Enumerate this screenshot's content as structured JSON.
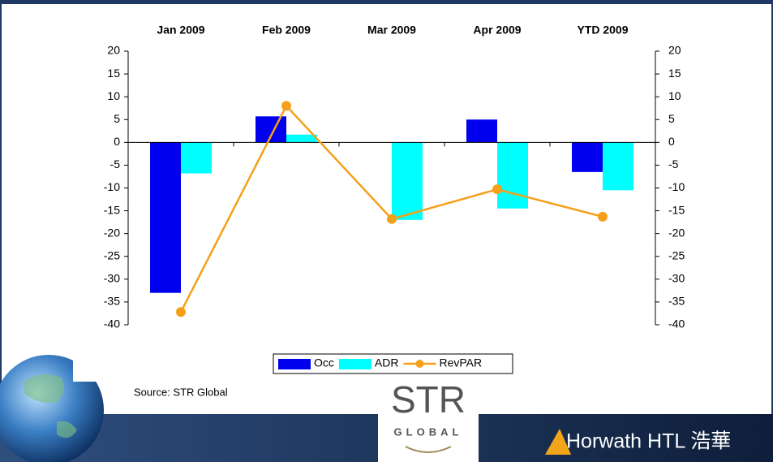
{
  "chart_data": {
    "type": "bar",
    "categories": [
      "Jan 2009",
      "Feb 2009",
      "Mar 2009",
      "Apr 2009",
      "YTD 2009"
    ],
    "series": [
      {
        "name": "Occ",
        "color": "#0000ee",
        "values": [
          -33,
          5.7,
          0,
          5,
          -6.5
        ]
      },
      {
        "name": "ADR",
        "color": "#00ffff",
        "values": [
          -6.8,
          1.7,
          -17,
          -14.5,
          -10.5
        ]
      },
      {
        "name": "RevPAR",
        "type": "line",
        "color": "#f5a01a",
        "values": [
          -37.2,
          8,
          -16.8,
          -10.3,
          -16.3
        ]
      }
    ],
    "ylim": [
      -40,
      20
    ],
    "yticks": [
      -40,
      -35,
      -30,
      -25,
      -20,
      -15,
      -10,
      -5,
      0,
      5,
      10,
      15,
      20
    ],
    "y2lim": [
      -40,
      20
    ],
    "y2ticks": [
      -40,
      -35,
      -30,
      -25,
      -20,
      -15,
      -10,
      -5,
      0,
      5,
      10,
      15,
      20
    ],
    "legend": "bottom",
    "source": "Source: STR Global"
  },
  "footer": {
    "logo_top": "STR",
    "logo_bottom": "GLOBAL",
    "brand": "Horwath HTL 浩華"
  }
}
